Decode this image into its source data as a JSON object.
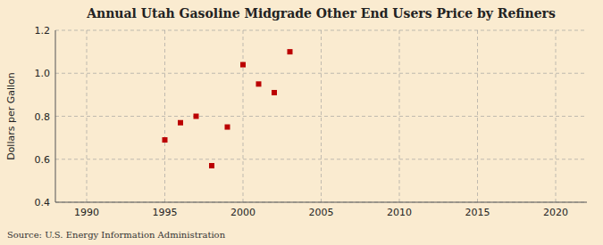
{
  "chart_data": {
    "type": "scatter",
    "title": "Annual Utah Gasoline Midgrade Other End Users Price by Refiners",
    "ylabel": "Dollars per Gallon",
    "annotations": [
      "Source: U.S. Energy Information Administration"
    ],
    "x": [
      1995,
      1996,
      1997,
      1998,
      1999,
      2000,
      2001,
      2002,
      2003
    ],
    "values": [
      0.69,
      0.77,
      0.8,
      0.57,
      0.75,
      1.04,
      0.95,
      0.91,
      1.1
    ],
    "color": "#bb0000",
    "marker": "square",
    "xlim": [
      1988,
      2022
    ],
    "ylim": [
      0.4,
      1.2
    ],
    "xticks": [
      1990,
      1995,
      2000,
      2005,
      2010,
      2015,
      2020
    ],
    "yticks": [
      0.4,
      0.6,
      0.8,
      {
        "value": 1.0,
        "label": "1.0"
      },
      1.2
    ],
    "grid": true
  }
}
